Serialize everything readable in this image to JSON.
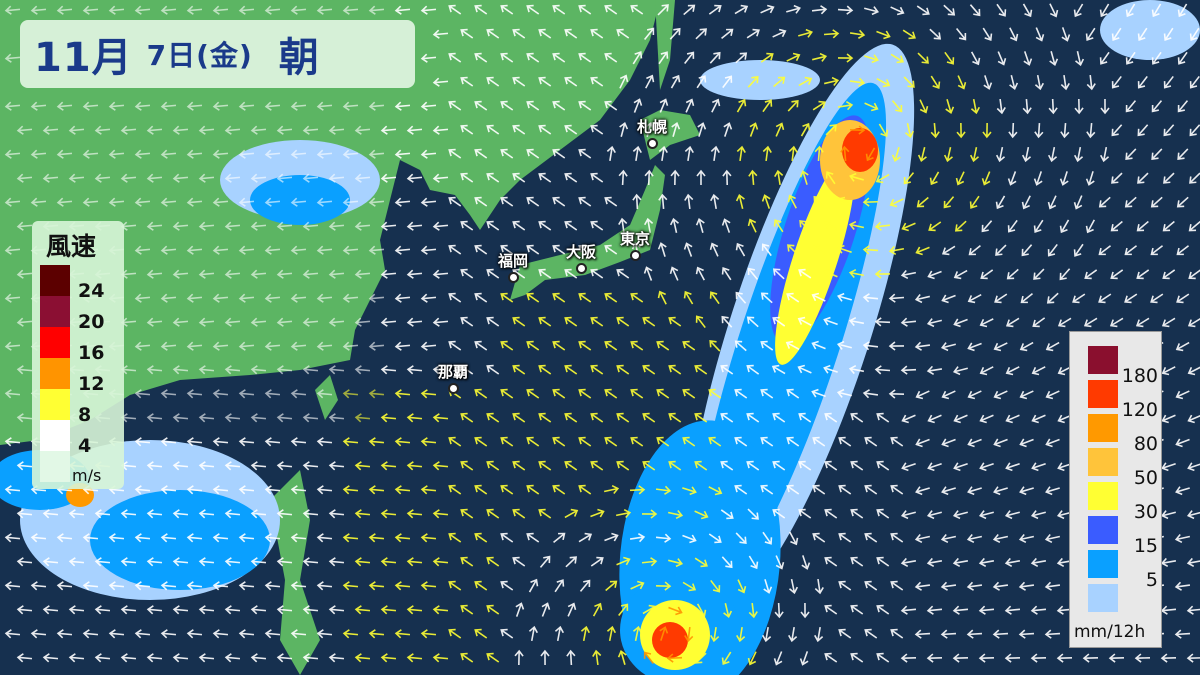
{
  "title": {
    "month": "11月",
    "day": "7日(金)",
    "time": "朝"
  },
  "cities": [
    {
      "name": "札幌"
    },
    {
      "name": "東京"
    },
    {
      "name": "大阪"
    },
    {
      "name": "福岡"
    },
    {
      "name": "那覇"
    }
  ],
  "wind_legend": {
    "title": "風速",
    "unit": "m/s",
    "levels": [
      {
        "label": "24",
        "color": "#5c0000"
      },
      {
        "label": "20",
        "color": "#8b0f33"
      },
      {
        "label": "16",
        "color": "#ff0000"
      },
      {
        "label": "12",
        "color": "#ff9400"
      },
      {
        "label": "8",
        "color": "#ffff33"
      },
      {
        "label": "4",
        "color": "#ffffff"
      },
      {
        "label": "",
        "color": "#e2f8e6"
      }
    ]
  },
  "rain_legend": {
    "unit": "mm/12h",
    "levels": [
      {
        "label": "180",
        "color": "#8a0f2e"
      },
      {
        "label": "120",
        "color": "#ff3a00"
      },
      {
        "label": "80",
        "color": "#ff9900"
      },
      {
        "label": "50",
        "color": "#ffc43a"
      },
      {
        "label": "30",
        "color": "#ffff33"
      },
      {
        "label": "15",
        "color": "#3a5cff"
      },
      {
        "label": "5",
        "color": "#0aa0ff"
      },
      {
        "label": "",
        "color": "#a8d2ff"
      }
    ]
  },
  "colors": {
    "ocean": "#16304f",
    "land": "#5cb563"
  }
}
